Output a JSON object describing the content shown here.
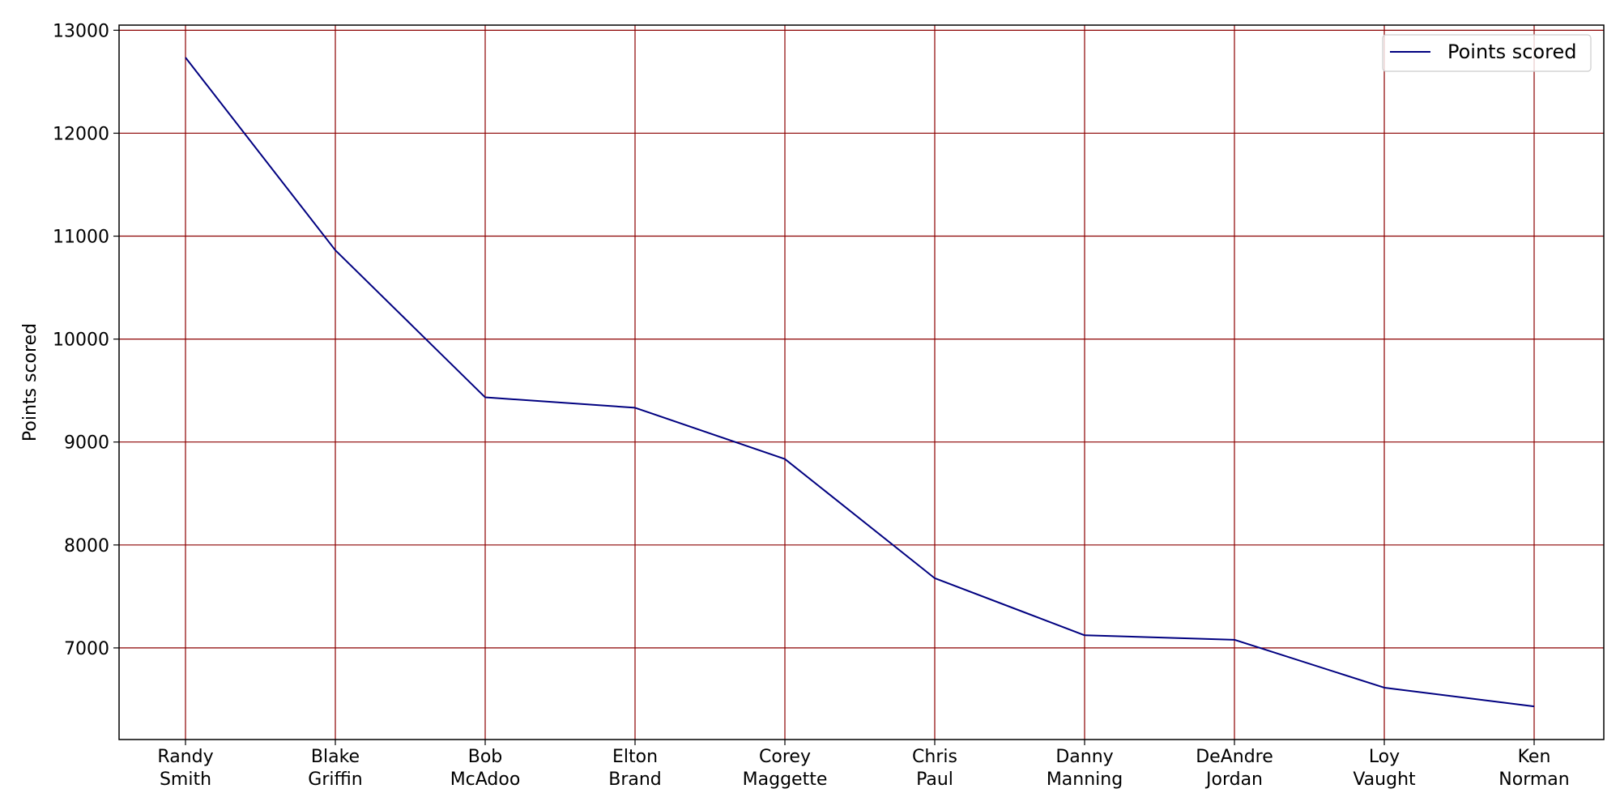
{
  "chart_data": {
    "type": "line",
    "title": "",
    "xlabel": "",
    "ylabel": "Points scored",
    "categories": [
      [
        "Randy",
        "Smith"
      ],
      [
        "Blake",
        "Griffin"
      ],
      [
        "Bob",
        "McAdoo"
      ],
      [
        "Elton",
        "Brand"
      ],
      [
        "Corey",
        "Maggette"
      ],
      [
        "Chris",
        "Paul"
      ],
      [
        "Danny",
        "Manning"
      ],
      [
        "DeAndre",
        "Jordan"
      ],
      [
        "Loy",
        "Vaught"
      ],
      [
        "Ken",
        "Norman"
      ]
    ],
    "series": [
      {
        "name": "Points scored",
        "values": [
          12735,
          10863,
          9434,
          9333,
          8835,
          7677,
          7123,
          7079,
          6614,
          6432
        ]
      }
    ],
    "ylim": [
      6110,
      13050
    ],
    "yticks": [
      7000,
      8000,
      9000,
      10000,
      11000,
      12000,
      13000
    ],
    "grid": true,
    "legend_position": "top-right",
    "colors": {
      "line": "#000080",
      "grid": "#8b0000",
      "axes": "#000000"
    }
  }
}
